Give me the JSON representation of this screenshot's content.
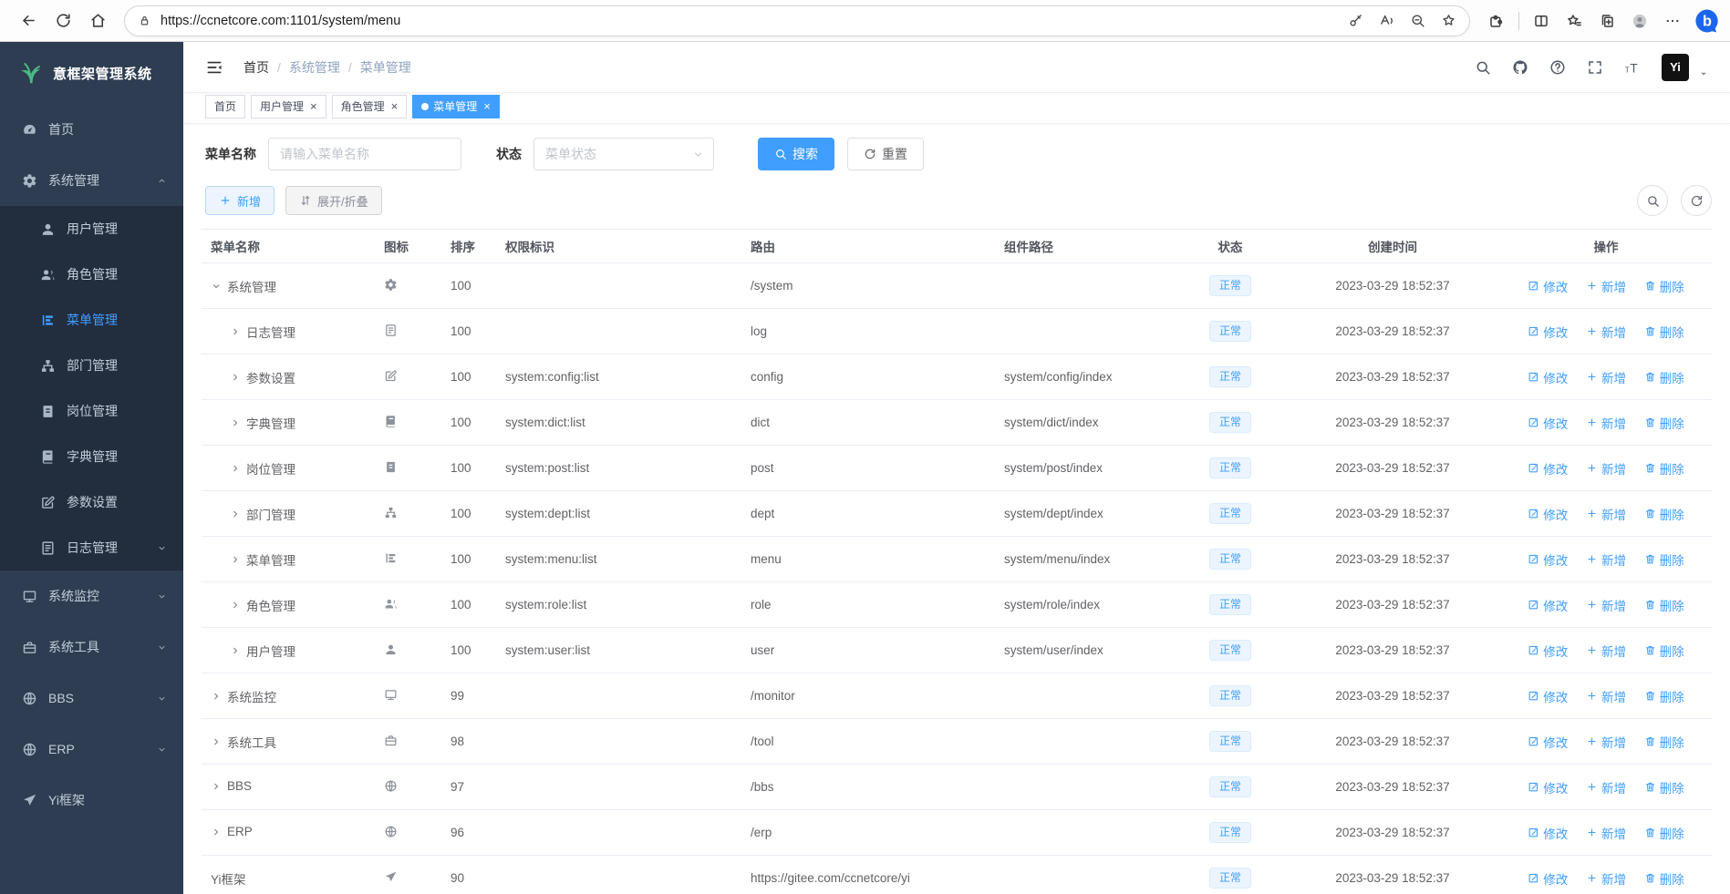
{
  "theme": {
    "accent": "#409eff",
    "sidebar_bg": "#2e3d51",
    "submenu_bg": "#222d3e",
    "status_badge_bg": "#ecf5ff"
  },
  "browser": {
    "url": "https://ccnetcore.com:1101/system/menu"
  },
  "app": {
    "logo_text": "意框架管理系统",
    "sidebar": {
      "items": [
        {
          "key": "home",
          "icon": "gauge",
          "label": "首页"
        },
        {
          "key": "system-mgmt",
          "icon": "gear",
          "label": "系统管理",
          "chevron": "up",
          "children": [
            {
              "key": "user-mgmt",
              "icon": "user",
              "label": "用户管理"
            },
            {
              "key": "role-mgmt",
              "icon": "users",
              "label": "角色管理"
            },
            {
              "key": "menu-mgmt",
              "icon": "menu-tree",
              "label": "菜单管理",
              "active": true
            },
            {
              "key": "dept-mgmt",
              "icon": "dept",
              "label": "部门管理"
            },
            {
              "key": "post-mgmt",
              "icon": "post",
              "label": "岗位管理"
            },
            {
              "key": "dict-mgmt",
              "icon": "dict",
              "label": "字典管理"
            },
            {
              "key": "param-settings",
              "icon": "edit",
              "label": "参数设置"
            },
            {
              "key": "log-mgmt",
              "icon": "log",
              "label": "日志管理",
              "chevron": "down"
            }
          ]
        },
        {
          "key": "system-monitor",
          "icon": "monitor",
          "label": "系统监控",
          "chevron": "down"
        },
        {
          "key": "system-tools",
          "icon": "tool",
          "label": "系统工具",
          "chevron": "down"
        },
        {
          "key": "bbs",
          "icon": "globe",
          "label": "BBS",
          "chevron": "down"
        },
        {
          "key": "erp",
          "icon": "globe",
          "label": "ERP",
          "chevron": "down"
        },
        {
          "key": "yi-framework",
          "icon": "plane",
          "label": "Yi框架"
        }
      ]
    },
    "breadcrumb": [
      "首页",
      "系统管理",
      "菜单管理"
    ],
    "tabs": [
      {
        "key": "home",
        "label": "首页"
      },
      {
        "key": "user-mgmt",
        "label": "用户管理",
        "closable": true
      },
      {
        "key": "role-mgmt",
        "label": "角色管理",
        "closable": true
      },
      {
        "key": "menu-mgmt",
        "label": "菜单管理",
        "closable": true,
        "active": true
      }
    ],
    "filters": {
      "name_label": "菜单名称",
      "name_placeholder": "请输入菜单名称",
      "status_label": "状态",
      "status_placeholder": "菜单状态",
      "search_label": "搜索",
      "reset_label": "重置"
    },
    "toolbar": {
      "add_label": "新增",
      "toggle_label": "展开/折叠"
    },
    "table": {
      "columns": [
        {
          "label": "菜单名称",
          "align": "left"
        },
        {
          "label": "图标",
          "align": "left"
        },
        {
          "label": "排序",
          "align": "left"
        },
        {
          "label": "权限标识",
          "align": "left"
        },
        {
          "label": "路由",
          "align": "left"
        },
        {
          "label": "组件路径",
          "align": "left"
        },
        {
          "label": "状态",
          "align": "center"
        },
        {
          "label": "创建时间",
          "align": "center"
        },
        {
          "label": "操作",
          "align": "center"
        }
      ],
      "actions": {
        "edit": "修改",
        "add": "新增",
        "delete": "删除"
      },
      "rows": [
        {
          "name": "系统管理",
          "level": 0,
          "expand": "down",
          "icon": "gear",
          "sort": "100",
          "perm": "",
          "route": "/system",
          "component": "",
          "status": "正常",
          "created": "2023-03-29 18:52:37"
        },
        {
          "name": "日志管理",
          "level": 1,
          "expand": "right",
          "icon": "log",
          "sort": "100",
          "perm": "",
          "route": "log",
          "component": "",
          "status": "正常",
          "created": "2023-03-29 18:52:37"
        },
        {
          "name": "参数设置",
          "level": 1,
          "expand": "right",
          "icon": "edit",
          "sort": "100",
          "perm": "system:config:list",
          "route": "config",
          "component": "system/config/index",
          "status": "正常",
          "created": "2023-03-29 18:52:37"
        },
        {
          "name": "字典管理",
          "level": 1,
          "expand": "right",
          "icon": "dict",
          "sort": "100",
          "perm": "system:dict:list",
          "route": "dict",
          "component": "system/dict/index",
          "status": "正常",
          "created": "2023-03-29 18:52:37"
        },
        {
          "name": "岗位管理",
          "level": 1,
          "expand": "right",
          "icon": "post",
          "sort": "100",
          "perm": "system:post:list",
          "route": "post",
          "component": "system/post/index",
          "status": "正常",
          "created": "2023-03-29 18:52:37"
        },
        {
          "name": "部门管理",
          "level": 1,
          "expand": "right",
          "icon": "dept",
          "sort": "100",
          "perm": "system:dept:list",
          "route": "dept",
          "component": "system/dept/index",
          "status": "正常",
          "created": "2023-03-29 18:52:37"
        },
        {
          "name": "菜单管理",
          "level": 1,
          "expand": "right",
          "icon": "menu-tree",
          "sort": "100",
          "perm": "system:menu:list",
          "route": "menu",
          "component": "system/menu/index",
          "status": "正常",
          "created": "2023-03-29 18:52:37"
        },
        {
          "name": "角色管理",
          "level": 1,
          "expand": "right",
          "icon": "users",
          "sort": "100",
          "perm": "system:role:list",
          "route": "role",
          "component": "system/role/index",
          "status": "正常",
          "created": "2023-03-29 18:52:37"
        },
        {
          "name": "用户管理",
          "level": 1,
          "expand": "right",
          "icon": "user",
          "sort": "100",
          "perm": "system:user:list",
          "route": "user",
          "component": "system/user/index",
          "status": "正常",
          "created": "2023-03-29 18:52:37"
        },
        {
          "name": "系统监控",
          "level": 0,
          "expand": "right",
          "icon": "monitor",
          "sort": "99",
          "perm": "",
          "route": "/monitor",
          "component": "",
          "status": "正常",
          "created": "2023-03-29 18:52:37"
        },
        {
          "name": "系统工具",
          "level": 0,
          "expand": "right",
          "icon": "tool",
          "sort": "98",
          "perm": "",
          "route": "/tool",
          "component": "",
          "status": "正常",
          "created": "2023-03-29 18:52:37"
        },
        {
          "name": "BBS",
          "level": 0,
          "expand": "right",
          "icon": "globe",
          "sort": "97",
          "perm": "",
          "route": "/bbs",
          "component": "",
          "status": "正常",
          "created": "2023-03-29 18:52:37"
        },
        {
          "name": "ERP",
          "level": 0,
          "expand": "right",
          "icon": "globe",
          "sort": "96",
          "perm": "",
          "route": "/erp",
          "component": "",
          "status": "正常",
          "created": "2023-03-29 18:52:37"
        },
        {
          "name": "Yi框架",
          "level": 0,
          "expand": null,
          "icon": "plane",
          "sort": "90",
          "perm": "",
          "route": "https://gitee.com/ccnetcore/yi",
          "component": "",
          "status": "正常",
          "created": "2023-03-29 18:52:37"
        }
      ]
    }
  }
}
